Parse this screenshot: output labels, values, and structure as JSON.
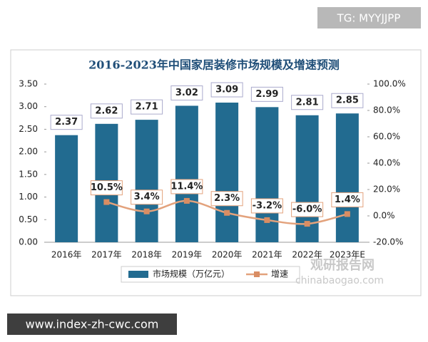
{
  "chart_data": {
    "type": "bar-line",
    "title": "2016-2023年中国家居装修市场规模及增速预测",
    "categories": [
      "2016年",
      "2017年",
      "2018年",
      "2019年",
      "2020年",
      "2021年",
      "2022年",
      "2023年E"
    ],
    "series": [
      {
        "name": "市场规模（万亿元）",
        "color": "#226b90",
        "type": "bar",
        "values": [
          2.37,
          2.62,
          2.71,
          3.02,
          3.09,
          2.99,
          2.81,
          2.85
        ]
      },
      {
        "name": "增速",
        "color": "#e3a27c",
        "type": "line",
        "axis": "y2",
        "values": [
          null,
          10.5,
          3.4,
          11.4,
          2.3,
          -3.2,
          -6.0,
          1.4
        ],
        "value_labels": [
          null,
          "10.5%",
          "3.4%",
          "11.4%",
          "2.3%",
          "-3.2%",
          "-6.0%",
          "1.4%"
        ]
      }
    ],
    "ylim": [
      0,
      3.5
    ],
    "yticks": [
      {
        "value": 0,
        "label": "0.00"
      },
      {
        "value": 0.5,
        "label": "0.50"
      },
      {
        "value": 1,
        "label": "1.00"
      },
      {
        "value": 1.5,
        "label": "1.50"
      },
      {
        "value": 2,
        "label": "2.00"
      },
      {
        "value": 2.5,
        "label": "2.50"
      },
      {
        "value": 3,
        "label": "3.00"
      },
      {
        "value": 3.5,
        "label": "3.50"
      }
    ],
    "y2lim": [
      -20,
      100
    ],
    "y2ticks": [
      {
        "value": -20,
        "label": "-20.0%"
      },
      {
        "value": 0,
        "label": "0.0%"
      },
      {
        "value": 20,
        "label": "20.0%"
      },
      {
        "value": 40,
        "label": "40.0%"
      },
      {
        "value": 60,
        "label": "60.0%"
      },
      {
        "value": 80,
        "label": "80.0%"
      },
      {
        "value": 100,
        "label": "100.0%"
      }
    ],
    "legend": "bottom"
  },
  "watermarks": {
    "top": "TG: MYYJJPP",
    "bottom": "www.index-zh-cwc.com",
    "brand": "观研报告网",
    "site": "chinabaogao.com"
  }
}
